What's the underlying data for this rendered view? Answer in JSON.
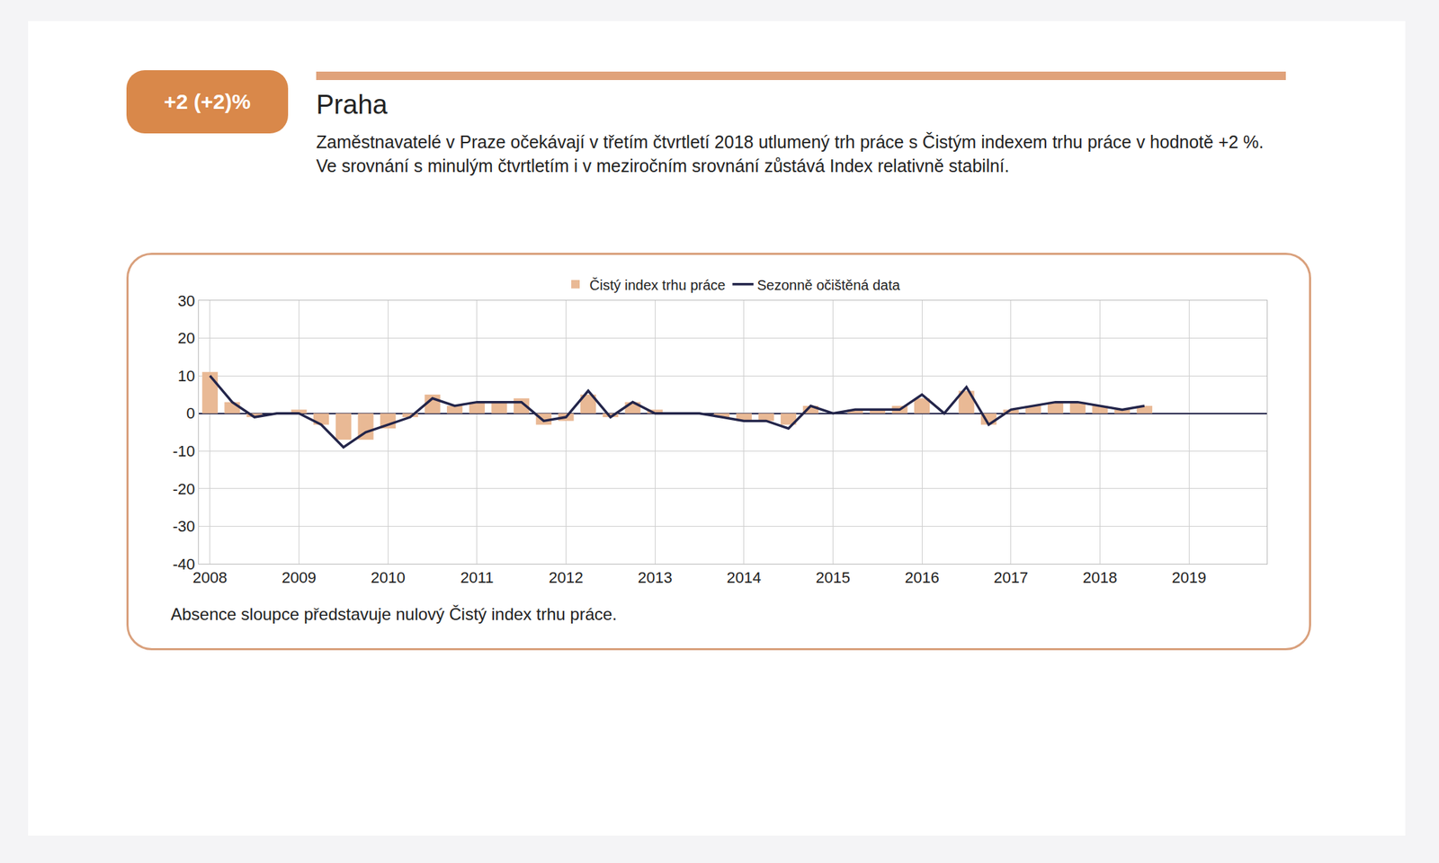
{
  "badge": "+2 (+2)%",
  "heading": "Praha",
  "text": "Zaměstnavatelé v Praze očekávají v třetím čtvrtletí 2018 utlumený trh práce s Čistým indexem trhu práce v hodnotě +2 %. Ve srovnání s minulým čtvrtletím i v meziročním srovnání zůstává Index relativně stabilní.",
  "note": "Absence sloupce představuje nulový Čistý index trhu práce.",
  "chart_data": {
    "type": "bar",
    "categories": [
      "2008",
      null,
      null,
      null,
      "2009",
      null,
      null,
      null,
      "2010",
      null,
      null,
      null,
      "2011",
      null,
      null,
      null,
      "2012",
      null,
      null,
      null,
      "2013",
      null,
      null,
      null,
      "2014",
      null,
      null,
      null,
      "2015",
      null,
      null,
      null,
      "2016",
      null,
      null,
      null,
      "2017",
      null,
      null,
      null,
      "2018",
      null,
      null,
      null,
      "2019",
      null,
      null,
      null
    ],
    "series": [
      {
        "name": "Čistý index trhu práce",
        "type": "bar",
        "color": "#e9b995",
        "values": [
          11,
          3,
          -1,
          0,
          1,
          -3,
          -7,
          -7,
          -4,
          -1,
          5,
          2,
          3,
          3,
          4,
          -3,
          -2,
          5,
          -1,
          3,
          1,
          0,
          0,
          -1,
          -2,
          -2,
          -3,
          2,
          0,
          1,
          1,
          2,
          4,
          0,
          6,
          -3,
          1,
          2,
          3,
          3,
          2,
          1,
          2,
          null,
          null,
          null,
          null,
          null
        ]
      },
      {
        "name": "Sezonně očištěná data",
        "type": "line",
        "color": "#23254a",
        "values": [
          10,
          3,
          -1,
          0,
          0,
          -3,
          -9,
          -5,
          -3,
          -1,
          4,
          2,
          3,
          3,
          3,
          -2,
          -1,
          6,
          -1,
          3,
          0,
          0,
          0,
          -1,
          -2,
          -2,
          -4,
          2,
          0,
          1,
          1,
          1,
          5,
          0,
          7,
          -3,
          1,
          2,
          3,
          3,
          2,
          1,
          2,
          null,
          null,
          null,
          null,
          null
        ]
      }
    ],
    "ylim": [
      -40,
      30
    ],
    "yticks": [
      -40,
      -30,
      -20,
      -10,
      0,
      10,
      20,
      30
    ],
    "grid": true,
    "legend": "top"
  }
}
